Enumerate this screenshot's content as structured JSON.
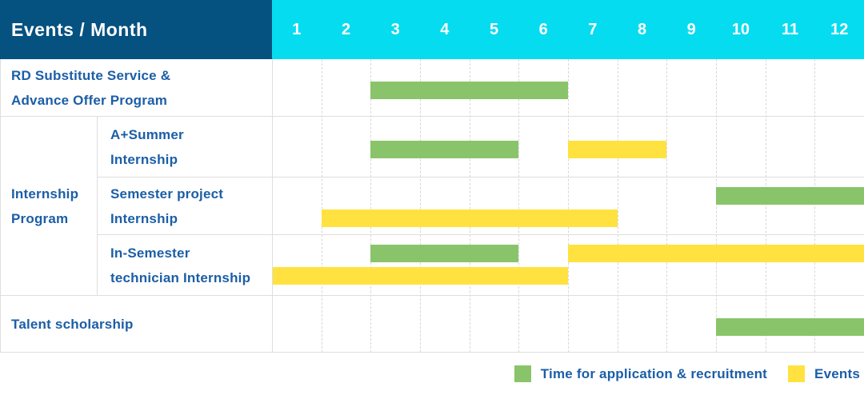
{
  "header": {
    "title": "Events / Month",
    "months": [
      "1",
      "2",
      "3",
      "4",
      "5",
      "6",
      "7",
      "8",
      "9",
      "10",
      "11",
      "12"
    ]
  },
  "group": {
    "line1": "Internship",
    "line2": "Program"
  },
  "rows": [
    {
      "label_line1": "RD Substitute Service &",
      "label_line2": "Advance Offer Program"
    },
    {
      "label_line1": "A+Summer",
      "label_line2": "Internship"
    },
    {
      "label_line1": "Semester project",
      "label_line2": "Internship"
    },
    {
      "label_line1": "In-Semester",
      "label_line2": "technician Internship"
    },
    {
      "label_line1": "Talent scholarship"
    }
  ],
  "legend": {
    "application_label": "Time for application & recruitment",
    "events_label": "Events"
  },
  "colors": {
    "header_navy": "#055180",
    "header_cyan": "#06dcf0",
    "bar_green": "#8ac46a",
    "bar_yellow": "#ffe23f",
    "label_blue": "#1b5ea7"
  },
  "chart_data": {
    "type": "gantt",
    "unit": "month",
    "x_range": [
      1,
      12
    ],
    "x_ticks": [
      "1",
      "2",
      "3",
      "4",
      "5",
      "6",
      "7",
      "8",
      "9",
      "10",
      "11",
      "12"
    ],
    "corner_header": "Events / Month",
    "legend": [
      {
        "key": "application",
        "color": "#8ac46a",
        "label": "Time for application & recruitment"
      },
      {
        "key": "events",
        "color": "#ffe23f",
        "label": "Events"
      }
    ],
    "rows": [
      {
        "label": "RD Substitute Service & Advance Offer Program",
        "group": null,
        "bars": [
          {
            "kind": "application",
            "start_month": 3,
            "end_month": 6,
            "lane": "mid"
          }
        ]
      },
      {
        "label": "A+Summer Internship",
        "group": "Internship Program",
        "bars": [
          {
            "kind": "application",
            "start_month": 3,
            "end_month": 5,
            "lane": "mid"
          },
          {
            "kind": "events",
            "start_month": 7,
            "end_month": 8,
            "lane": "mid"
          }
        ]
      },
      {
        "label": "Semester project Internship",
        "group": "Internship Program",
        "bars": [
          {
            "kind": "application",
            "start_month": 10,
            "end_month": 12,
            "lane": "top"
          },
          {
            "kind": "events",
            "start_month": 2,
            "end_month": 7,
            "lane": "bottom"
          }
        ]
      },
      {
        "label": "In-Semester technician Internship",
        "group": "Internship Program",
        "bars": [
          {
            "kind": "application",
            "start_month": 3,
            "end_month": 5,
            "lane": "top"
          },
          {
            "kind": "events",
            "start_month": 7,
            "end_month": 12,
            "lane": "top"
          },
          {
            "kind": "events",
            "start_month": 1,
            "end_month": 6,
            "lane": "bottom"
          }
        ]
      },
      {
        "label": "Talent scholarship",
        "group": null,
        "bars": [
          {
            "kind": "application",
            "start_month": 10,
            "end_month": 12,
            "lane": "mid"
          }
        ]
      }
    ]
  }
}
